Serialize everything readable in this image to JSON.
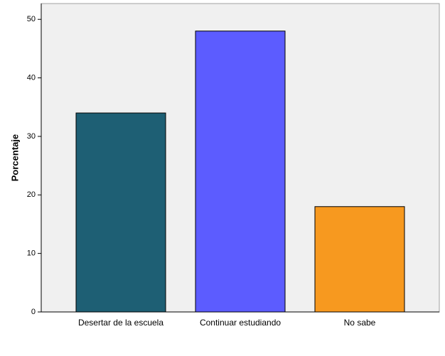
{
  "chart_data": {
    "type": "bar",
    "y_label": "Porcentaje",
    "categories": [
      "Desertar de la escuela",
      "Continuar estudiando",
      "No sabe"
    ],
    "values": [
      34,
      48,
      18
    ],
    "colors": [
      "#1e5f74",
      "#5c5cff",
      "#f7991f"
    ],
    "ylim": [
      0,
      52.7
    ],
    "yticks": [
      0,
      10,
      20,
      30,
      40,
      50
    ],
    "grid": false
  }
}
